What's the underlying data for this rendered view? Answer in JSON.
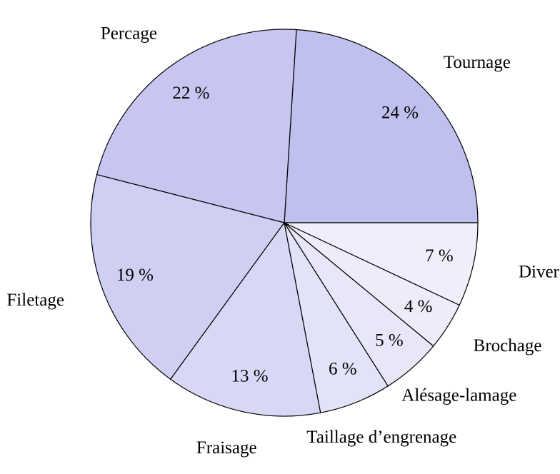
{
  "chart_data": {
    "type": "pie",
    "categories": [
      "Tournage",
      "Percage",
      "Filetage",
      "Fraisage",
      "Taillage d’engrenage",
      "Alésage-lamage",
      "Brochage",
      "Divers"
    ],
    "values": [
      24,
      22,
      19,
      13,
      6,
      5,
      4,
      7
    ],
    "value_labels": [
      "24 %",
      "22 %",
      "19 %",
      "13 %",
      "6 %",
      "5 %",
      "4 %",
      "7 %"
    ],
    "colors": [
      "#c0c0ef",
      "#c6c6f1",
      "#cfcff3",
      "#d8d8f6",
      "#e2e2f8",
      "#e7e7f9",
      "#ececfb",
      "#efeffc"
    ]
  }
}
